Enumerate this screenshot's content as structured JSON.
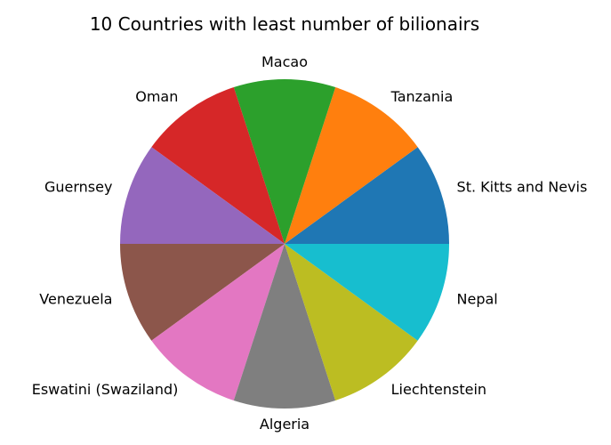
{
  "chart_data": {
    "type": "pie",
    "title": "10 Countries with least number of bilionairs",
    "labels": [
      "St. Kitts and Nevis",
      "Tanzania",
      "Macao",
      "Oman",
      "Guernsey",
      "Venezuela",
      "Eswatini (Swaziland)",
      "Algeria",
      "Liechtenstein",
      "Nepal"
    ],
    "values": [
      1,
      1,
      1,
      1,
      1,
      1,
      1,
      1,
      1,
      1
    ],
    "colors": [
      "#1f77b4",
      "#ff7f0e",
      "#2ca02c",
      "#d62728",
      "#9467bd",
      "#8c564b",
      "#e377c2",
      "#7f7f7f",
      "#bcbd22",
      "#17becf"
    ],
    "start_angle_deg": 0,
    "direction": "counterclockwise",
    "legend": "none"
  }
}
